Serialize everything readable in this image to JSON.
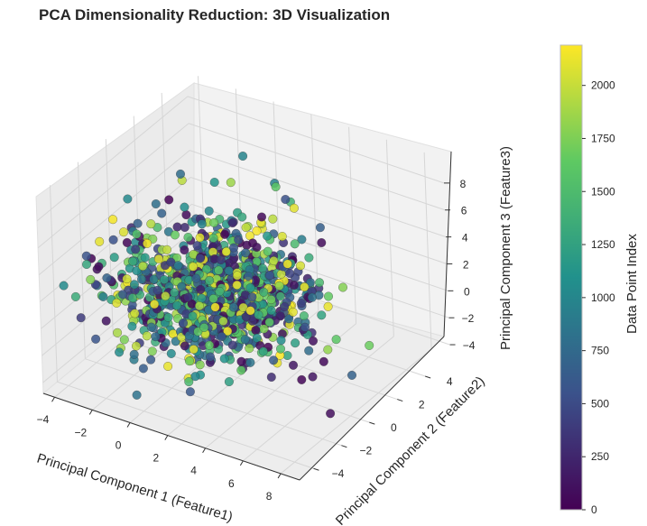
{
  "chart_data": {
    "type": "scatter",
    "projection": "3d",
    "title": "PCA Dimensionality Reduction: 3D Visualization",
    "xlabel": "Principal Component 1 (Feature1)",
    "ylabel": "Principal Component 2 (Feature2)",
    "zlabel": "Principal Component 3 (Feature3)",
    "xlim": [
      -4.6,
      9.0
    ],
    "ylim": [
      -5.0,
      5.8
    ],
    "zlim": [
      -4.8,
      9.8
    ],
    "xticks": [
      -4,
      -2,
      0,
      2,
      4,
      6,
      8
    ],
    "yticks": [
      -4,
      -2,
      0,
      2,
      4
    ],
    "zticks": [
      -4,
      -2,
      0,
      2,
      4,
      6,
      8
    ],
    "grid": true,
    "colormap": "viridis",
    "color_by": "index",
    "n_points": 2190,
    "point_cloud_summary": {
      "main_blob_center": [
        0.5,
        0.5,
        0.3
      ],
      "main_blob_spread": [
        2.2,
        1.6,
        1.8
      ],
      "notes": "dense ellipsoidal cluster; outliers up to PC3 ≈ 7, PC1 ≈ 7"
    },
    "colorbar": {
      "label": "Data Point Index",
      "range": [
        0,
        2190
      ],
      "ticks": [
        0,
        250,
        500,
        750,
        1000,
        1250,
        1500,
        1750,
        2000
      ]
    },
    "colors": {
      "viridis": [
        "#440154",
        "#3b528b",
        "#21918c",
        "#5ec962",
        "#fde725"
      ],
      "pane": "#f2f2f2",
      "grid": "#d4d4d4"
    }
  }
}
